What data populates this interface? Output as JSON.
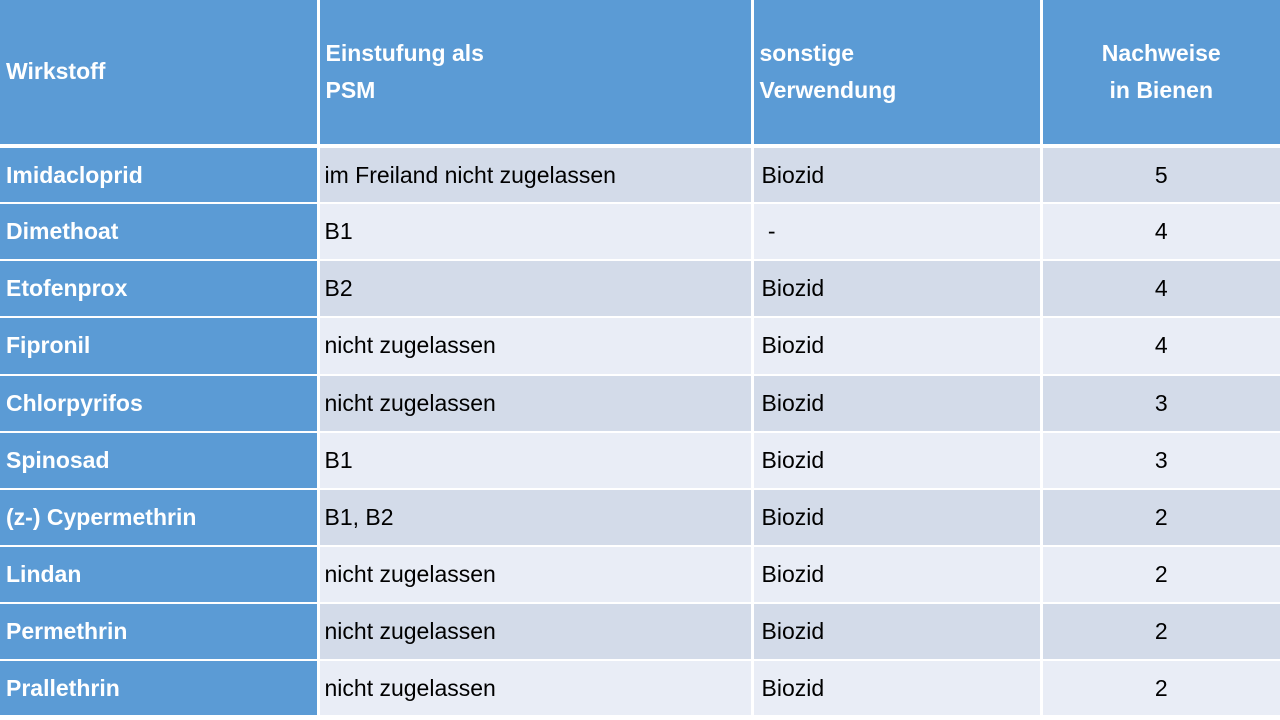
{
  "chart_data": {
    "type": "table",
    "title": "",
    "columns": [
      "Wirkstoff",
      "Einstufung als\nPSM",
      "sonstige\nVerwendung",
      "Nachweise\nin Bienen"
    ],
    "rows": [
      [
        "Imidacloprid",
        "im Freiland nicht zugelassen",
        "Biozid",
        "5"
      ],
      [
        "Dimethoat",
        "B1",
        " -",
        "4"
      ],
      [
        "Etofenprox",
        "B2",
        "Biozid",
        "4"
      ],
      [
        "Fipronil",
        "nicht zugelassen",
        "Biozid",
        "4"
      ],
      [
        "Chlorpyrifos",
        "nicht zugelassen",
        "Biozid",
        "3"
      ],
      [
        "Spinosad",
        "B1",
        "Biozid",
        "3"
      ],
      [
        "(z-) Cypermethrin",
        "B1, B2",
        "Biozid",
        "2"
      ],
      [
        "Lindan",
        "nicht zugelassen",
        "Biozid",
        "2"
      ],
      [
        "Permethrin",
        "nicht zugelassen",
        "Biozid",
        "2"
      ],
      [
        "Prallethrin",
        "nicht zugelassen",
        "Biozid",
        "2"
      ]
    ],
    "layout": {
      "header_rows": 1,
      "row_header_column": true,
      "alternating_row_shading": true,
      "numeric_column_alignment": "center"
    }
  },
  "colors": {
    "header_bg": "#5B9BD5",
    "label_bg": "#5B9BD5",
    "row_odd_bg": "#D3DBE9",
    "row_even_bg": "#E9EDF6",
    "border": "#FFFFFF",
    "header_text": "#FFFFFF",
    "body_text": "#000000"
  }
}
